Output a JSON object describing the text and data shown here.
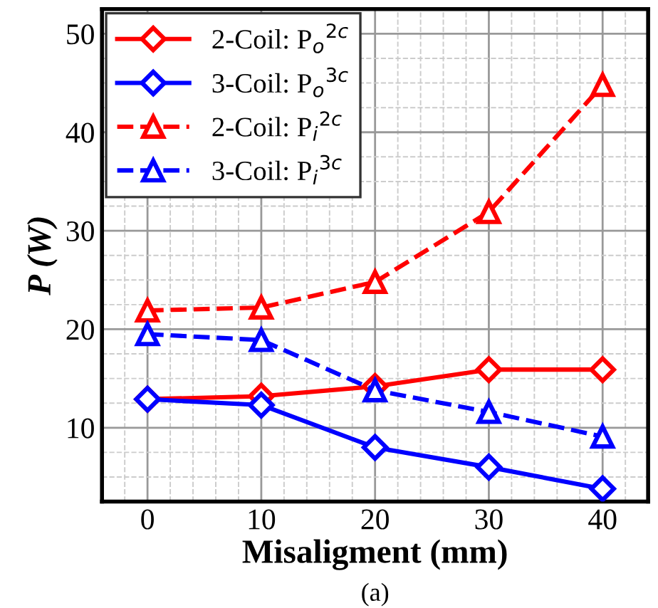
{
  "chart_data": {
    "type": "line",
    "xlabel": "Misaligment (mm)",
    "ylabel": "P (W)",
    "annotations": [
      "(a)"
    ],
    "x": [
      0,
      10,
      20,
      30,
      40
    ],
    "xlim": [
      -4,
      44
    ],
    "ylim": [
      2.5,
      52.5
    ],
    "xticks": [
      0,
      10,
      20,
      30,
      40
    ],
    "yticks": [
      10,
      20,
      30,
      40,
      50
    ],
    "grid": true,
    "legend": "top left",
    "series": [
      {
        "name": "2-Coil: P$_{o}$$^{2c}$",
        "color": "#ff0000",
        "marker": "diamond",
        "line_style": "solid",
        "values": [
          12.9,
          13.2,
          14.2,
          15.9,
          15.9
        ]
      },
      {
        "name": "3-Coil: P$_{o}$$^{3c}$",
        "color": "#0000ff",
        "marker": "diamond",
        "line_style": "solid",
        "values": [
          12.9,
          12.3,
          8.0,
          6.0,
          3.8
        ]
      },
      {
        "name": "2-Coil: P$_{i}$$^{2c}$",
        "color": "#ff0000",
        "marker": "triangle",
        "line_style": "dashed",
        "values": [
          21.9,
          22.2,
          24.8,
          31.9,
          44.8
        ]
      },
      {
        "name": "3-Coil: P$_{i}$$^{3c}$",
        "color": "#0000ff",
        "marker": "triangle",
        "line_style": "dashed",
        "values": [
          19.5,
          18.9,
          13.8,
          11.6,
          9.1
        ]
      }
    ]
  }
}
